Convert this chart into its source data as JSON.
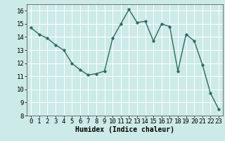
{
  "x": [
    0,
    1,
    2,
    3,
    4,
    5,
    6,
    7,
    8,
    9,
    10,
    11,
    12,
    13,
    14,
    15,
    16,
    17,
    18,
    19,
    20,
    21,
    22,
    23
  ],
  "y": [
    14.7,
    14.2,
    13.9,
    13.4,
    13.0,
    12.0,
    11.5,
    11.1,
    11.2,
    11.4,
    13.9,
    15.0,
    16.1,
    15.1,
    15.2,
    13.7,
    15.0,
    14.8,
    11.4,
    14.2,
    13.7,
    11.9,
    9.7,
    8.5
  ],
  "xlim": [
    -0.5,
    23.5
  ],
  "ylim": [
    8,
    16.5
  ],
  "yticks": [
    8,
    9,
    10,
    11,
    12,
    13,
    14,
    15,
    16
  ],
  "xticks": [
    0,
    1,
    2,
    3,
    4,
    5,
    6,
    7,
    8,
    9,
    10,
    11,
    12,
    13,
    14,
    15,
    16,
    17,
    18,
    19,
    20,
    21,
    22,
    23
  ],
  "xlabel": "Humidex (Indice chaleur)",
  "line_color": "#2e6b5e",
  "bg_color": "#cceae8",
  "grid_color": "#ffffff",
  "marker_size": 2.5,
  "line_width": 1.0,
  "xlabel_fontsize": 7,
  "tick_fontsize": 6.5
}
